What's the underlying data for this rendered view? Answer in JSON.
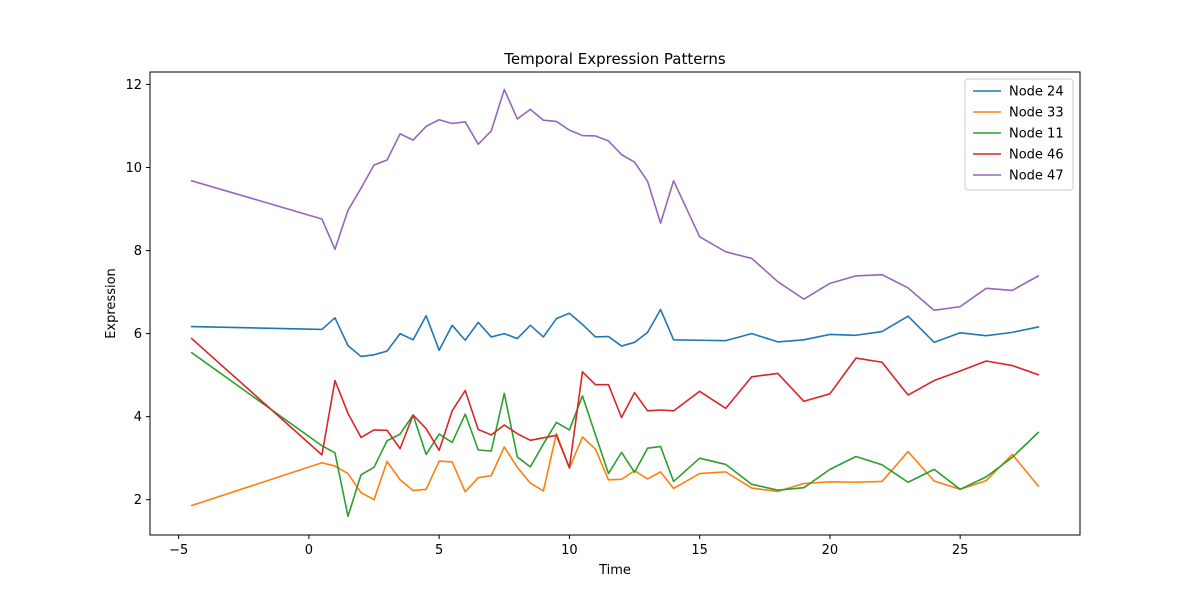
{
  "chart_data": {
    "type": "line",
    "title": "Temporal Expression Patterns",
    "xlabel": "Time",
    "ylabel": "Expression",
    "xlim": [
      -6.1,
      29.6
    ],
    "ylim": [
      1.15,
      12.3
    ],
    "xticks": [
      -5,
      0,
      5,
      10,
      15,
      20,
      25
    ],
    "yticks": [
      2,
      4,
      6,
      8,
      10,
      12
    ],
    "grid": false,
    "legend_position": "top-right",
    "x": [
      -4.5,
      0.5,
      1,
      1.5,
      2,
      2.5,
      3,
      3.5,
      4,
      4.5,
      5,
      5.5,
      6,
      6.5,
      7,
      7.5,
      8,
      8.5,
      9,
      9.5,
      10,
      10.5,
      11,
      11.5,
      12,
      12.5,
      13,
      13.5,
      14,
      15,
      16,
      17,
      18,
      19,
      20,
      21,
      22,
      23,
      24,
      25,
      26,
      27,
      28
    ],
    "series": [
      {
        "name": "Node 24",
        "color": "#1f77b4",
        "values": [
          6.17,
          6.1,
          6.38,
          5.71,
          5.45,
          5.49,
          5.58,
          6.0,
          5.85,
          6.43,
          5.6,
          6.2,
          5.84,
          6.27,
          5.92,
          6.0,
          5.88,
          6.2,
          5.92,
          6.36,
          6.49,
          6.22,
          5.92,
          5.93,
          5.7,
          5.79,
          6.03,
          6.58,
          5.85,
          5.84,
          5.83,
          6.0,
          5.8,
          5.85,
          5.98,
          5.96,
          6.05,
          6.42,
          5.79,
          6.02,
          5.95,
          6.03,
          6.16
        ]
      },
      {
        "name": "Node 33",
        "color": "#ff7f0e",
        "values": [
          1.86,
          2.89,
          2.81,
          2.63,
          2.17,
          2.0,
          2.92,
          2.48,
          2.22,
          2.25,
          2.93,
          2.91,
          2.19,
          2.53,
          2.58,
          3.27,
          2.78,
          2.4,
          2.21,
          3.59,
          2.76,
          3.51,
          3.22,
          2.48,
          2.49,
          2.7,
          2.5,
          2.67,
          2.27,
          2.63,
          2.67,
          2.28,
          2.2,
          2.39,
          2.43,
          2.42,
          2.44,
          3.16,
          2.45,
          2.25,
          2.46,
          3.09,
          2.33
        ]
      },
      {
        "name": "Node 11",
        "color": "#2ca02c",
        "values": [
          5.54,
          3.3,
          3.13,
          1.6,
          2.6,
          2.78,
          3.42,
          3.58,
          4.04,
          3.09,
          3.58,
          3.38,
          4.06,
          3.2,
          3.17,
          4.56,
          3.03,
          2.79,
          3.34,
          3.86,
          3.68,
          4.5,
          3.56,
          2.63,
          3.14,
          2.66,
          3.24,
          3.28,
          2.44,
          3.0,
          2.85,
          2.37,
          2.23,
          2.29,
          2.73,
          3.04,
          2.84,
          2.42,
          2.73,
          2.25,
          2.55,
          3.02,
          3.62
        ]
      },
      {
        "name": "Node 46",
        "color": "#d62728",
        "values": [
          5.88,
          3.08,
          4.87,
          4.08,
          3.5,
          3.68,
          3.67,
          3.23,
          4.04,
          3.71,
          3.19,
          4.14,
          4.63,
          3.69,
          3.56,
          3.8,
          3.59,
          3.43,
          3.49,
          3.55,
          2.77,
          5.08,
          4.77,
          4.77,
          3.98,
          4.58,
          4.14,
          4.16,
          4.14,
          4.61,
          4.2,
          4.96,
          5.04,
          4.37,
          4.55,
          5.41,
          5.31,
          4.52,
          4.87,
          5.1,
          5.34,
          5.23,
          5.01
        ]
      },
      {
        "name": "Node 47",
        "color": "#9467bd",
        "values": [
          9.68,
          8.76,
          8.03,
          8.97,
          9.5,
          10.06,
          10.18,
          10.81,
          10.66,
          10.99,
          11.15,
          11.06,
          11.1,
          10.56,
          10.88,
          11.88,
          11.17,
          11.4,
          11.14,
          11.11,
          10.9,
          10.77,
          10.76,
          10.64,
          10.31,
          10.13,
          9.67,
          8.66,
          9.68,
          8.33,
          7.97,
          7.81,
          7.25,
          6.83,
          7.21,
          7.39,
          7.42,
          7.1,
          6.56,
          6.65,
          7.09,
          7.04,
          7.39
        ]
      }
    ]
  }
}
